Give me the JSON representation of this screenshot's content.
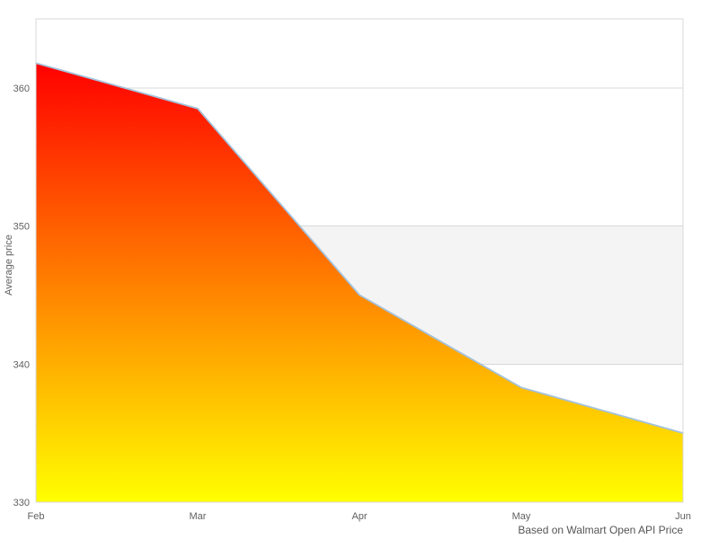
{
  "chart_data": {
    "type": "area",
    "categories": [
      "Feb",
      "Mar",
      "Apr",
      "May",
      "Jun"
    ],
    "values": [
      361.8,
      358.5,
      345.0,
      338.3,
      335.0
    ],
    "xlabel": "",
    "ylabel": "Average price",
    "ylim": [
      330,
      365
    ],
    "yticks": [
      330,
      340,
      350,
      360
    ],
    "grid": true,
    "legend": "none",
    "plot_band": {
      "from": 340,
      "to": 350
    },
    "caption": "Based on Walmart Open API Price"
  },
  "colors": {
    "line": "#a4c2dc",
    "gradient_top": "#ff0000",
    "gradient_bottom": "#ffff00",
    "band": "#f4f4f4",
    "grid": "#d8d8d8",
    "label": "#606060",
    "caption": "#555555",
    "background": "#ffffff"
  }
}
